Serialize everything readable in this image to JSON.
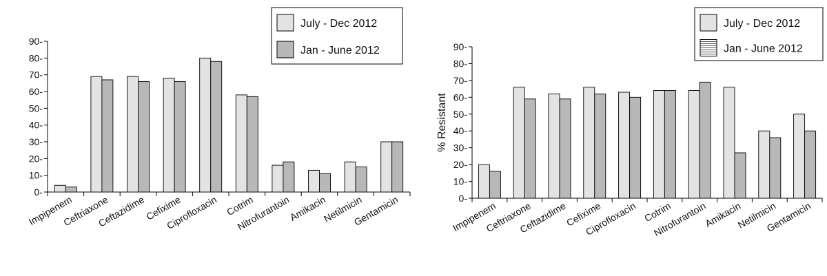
{
  "chart_data": [
    {
      "type": "bar",
      "title": "",
      "xlabel": "",
      "ylabel": "",
      "ylim": [
        0,
        90
      ],
      "yticks": [
        0,
        10,
        20,
        30,
        40,
        50,
        60,
        70,
        80,
        90
      ],
      "grid": false,
      "legend_position": "top-right",
      "categories": [
        "Impipenem",
        "Ceftriaxone",
        "Ceftazidime",
        "Cefixime",
        "Ciprofloxacin",
        "Cotrim",
        "Nitrofurantoin",
        "Amikacin",
        "Netilmicin",
        "Gentamicin"
      ],
      "series": [
        {
          "name": "July - Dec 2012",
          "color": "#e3e3e3",
          "pattern": "solid",
          "values": [
            4,
            69,
            69,
            68,
            80,
            58,
            16,
            13,
            18,
            30
          ]
        },
        {
          "name": "Jan - June 2012",
          "color": "#b8b8b8",
          "pattern": "solid",
          "values": [
            3,
            67,
            66,
            66,
            78,
            57,
            18,
            11,
            15,
            30
          ]
        }
      ]
    },
    {
      "type": "bar",
      "title": "",
      "xlabel": "",
      "ylabel": "% Resistant",
      "ylim": [
        0,
        90
      ],
      "yticks": [
        0,
        10,
        20,
        30,
        40,
        50,
        60,
        70,
        80,
        90
      ],
      "grid": false,
      "legend_position": "top-right",
      "legend_swatches": [
        "solid",
        "horizontal-lines"
      ],
      "categories": [
        "Impipenem",
        "Ceftriaxone",
        "Ceftazidime",
        "Cefixime",
        "Ciprofloxacin",
        "Cotrim",
        "Nitrofurantoin",
        "Amikacin",
        "Netilmicin",
        "Gentamicin"
      ],
      "series": [
        {
          "name": "July - Dec 2012",
          "color": "#e3e3e3",
          "pattern": "solid",
          "values": [
            20,
            66,
            62,
            66,
            63,
            64,
            64,
            66,
            40,
            50
          ]
        },
        {
          "name": "Jan - June 2012",
          "color": "#b8b8b8",
          "pattern": "solid",
          "values": [
            16,
            59,
            59,
            62,
            60,
            64,
            69,
            27,
            36,
            40
          ]
        }
      ]
    }
  ]
}
